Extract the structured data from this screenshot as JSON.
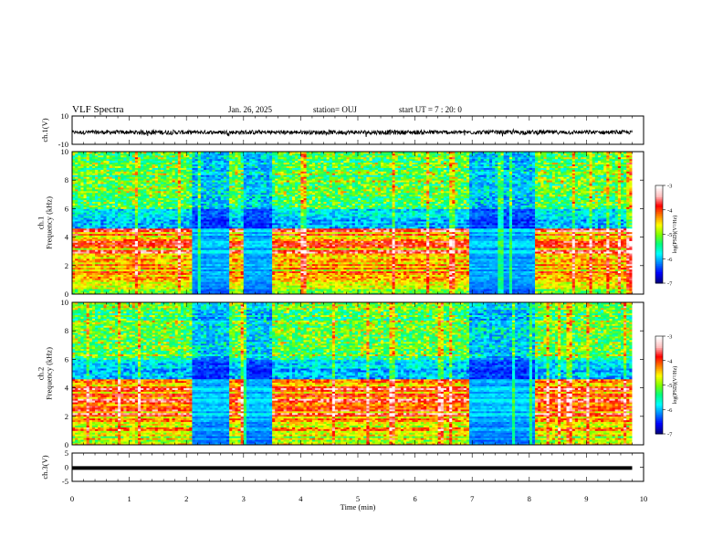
{
  "header": {
    "title": "VLF Spectra",
    "date": "Jan. 26, 2025",
    "station": "station= OUJ",
    "start_ut": "start  UT =  7 : 20: 0"
  },
  "colors": {
    "colormap": [
      "#00007f",
      "#0000ff",
      "#0080ff",
      "#00ffff",
      "#00ff80",
      "#80ff00",
      "#ffff00",
      "#ff8000",
      "#ff0000",
      "#ffc0c0",
      "#ffffff"
    ]
  },
  "chart_data": [
    {
      "panel": "ch1-waveform",
      "type": "line",
      "ylabel": "ch.1(V)",
      "ylim": [
        -10,
        10
      ],
      "yticks": [
        "10",
        "-10"
      ],
      "x": [
        0,
        0.5,
        1,
        1.5,
        2,
        2.5,
        3,
        3.5,
        4,
        4.5,
        5,
        5.5,
        6,
        6.5,
        7,
        7.5,
        8,
        8.5,
        9,
        9.5,
        9.8
      ],
      "y_envelope": [
        1.3,
        1.5,
        1.4,
        1.8,
        1.5,
        1.3,
        1.6,
        1.5,
        1.4,
        1.6,
        1.5,
        1.7,
        1.6,
        1.5,
        1.4,
        1.5,
        1.6,
        1.4,
        1.5,
        1.4,
        1.3
      ],
      "y_offset": -1.5
    },
    {
      "panel": "ch1-spectrogram",
      "type": "heatmap",
      "ylabel": "ch.1\nFrequency (kHz)",
      "ylim": [
        0,
        10
      ],
      "yticks": [
        "0",
        "2",
        "4",
        "6",
        "8",
        "10"
      ],
      "colorbar": {
        "label": "log(PSD)(V²/Hz)",
        "range": [
          -7,
          -3
        ],
        "ticks": [
          "-3",
          "-4",
          "-5",
          "-6",
          "-7"
        ]
      },
      "quiet_intervals_min": [
        [
          2.05,
          2.7
        ],
        [
          2.95,
          3.45
        ],
        [
          6.8,
          7.95
        ]
      ],
      "strong_band_khz": [
        2.0,
        4.5
      ]
    },
    {
      "panel": "ch2-spectrogram",
      "type": "heatmap",
      "ylabel": "ch.2\nFrequency (kHz)",
      "ylim": [
        0,
        10
      ],
      "yticks": [
        "0",
        "2",
        "4",
        "6",
        "8",
        "10"
      ],
      "colorbar": {
        "label": "log(PSD)(V²/Hz)",
        "range": [
          -7,
          -3
        ],
        "ticks": [
          "-3",
          "-4",
          "-5",
          "-6",
          "-7"
        ]
      },
      "quiet_intervals_min": [
        [
          2.05,
          2.7
        ],
        [
          2.95,
          3.45
        ],
        [
          6.8,
          7.95
        ]
      ],
      "strong_band_khz": [
        2.0,
        4.5
      ]
    },
    {
      "panel": "ch3-waveform",
      "type": "line",
      "ylabel": "ch.3(V)",
      "ylim": [
        -5,
        5
      ],
      "yticks": [
        "5",
        "0",
        "-5"
      ],
      "x": [
        0,
        9.8
      ],
      "y": [
        -0.3,
        -0.3
      ]
    }
  ],
  "xaxis": {
    "label": "Time (min)",
    "range": [
      0,
      10
    ],
    "ticks": [
      "0",
      "1",
      "2",
      "3",
      "4",
      "5",
      "6",
      "7",
      "8",
      "9",
      "10"
    ]
  }
}
